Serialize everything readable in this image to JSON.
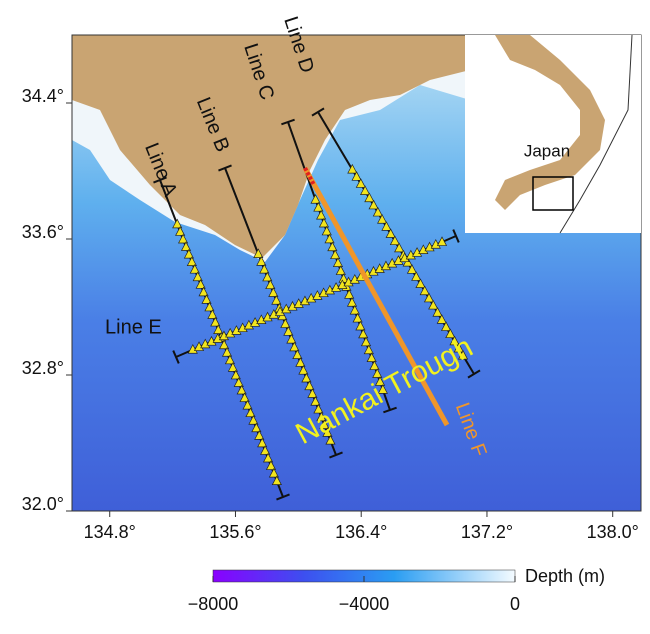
{
  "map": {
    "xlim": [
      134.56,
      138.18
    ],
    "ylim": [
      32.0,
      34.8
    ],
    "xticks": [
      {
        "value": 134.8,
        "label": "134.8°"
      },
      {
        "value": 135.6,
        "label": "135.6°"
      },
      {
        "value": 136.4,
        "label": "136.4°"
      },
      {
        "value": 137.2,
        "label": "137.2°"
      },
      {
        "value": 138.0,
        "label": "138.0°"
      }
    ],
    "yticks": [
      {
        "value": 32.0,
        "label": "32.0°"
      },
      {
        "value": 32.8,
        "label": "32.8°"
      },
      {
        "value": 33.6,
        "label": "33.6°"
      },
      {
        "value": 34.4,
        "label": "34.4°"
      }
    ],
    "survey_lines": [
      "Line A",
      "Line B",
      "Line C",
      "Line D",
      "Line E",
      "Line F"
    ],
    "inset_label": "Japan",
    "trough_label": "Nankai Trough",
    "colorbar": {
      "title": "Depth (m)",
      "lim": [
        -8000,
        0
      ],
      "ticks": [
        {
          "value": -8000,
          "label": "−8000"
        },
        {
          "value": -4000,
          "label": "−4000"
        },
        0
      ]
    }
  }
}
